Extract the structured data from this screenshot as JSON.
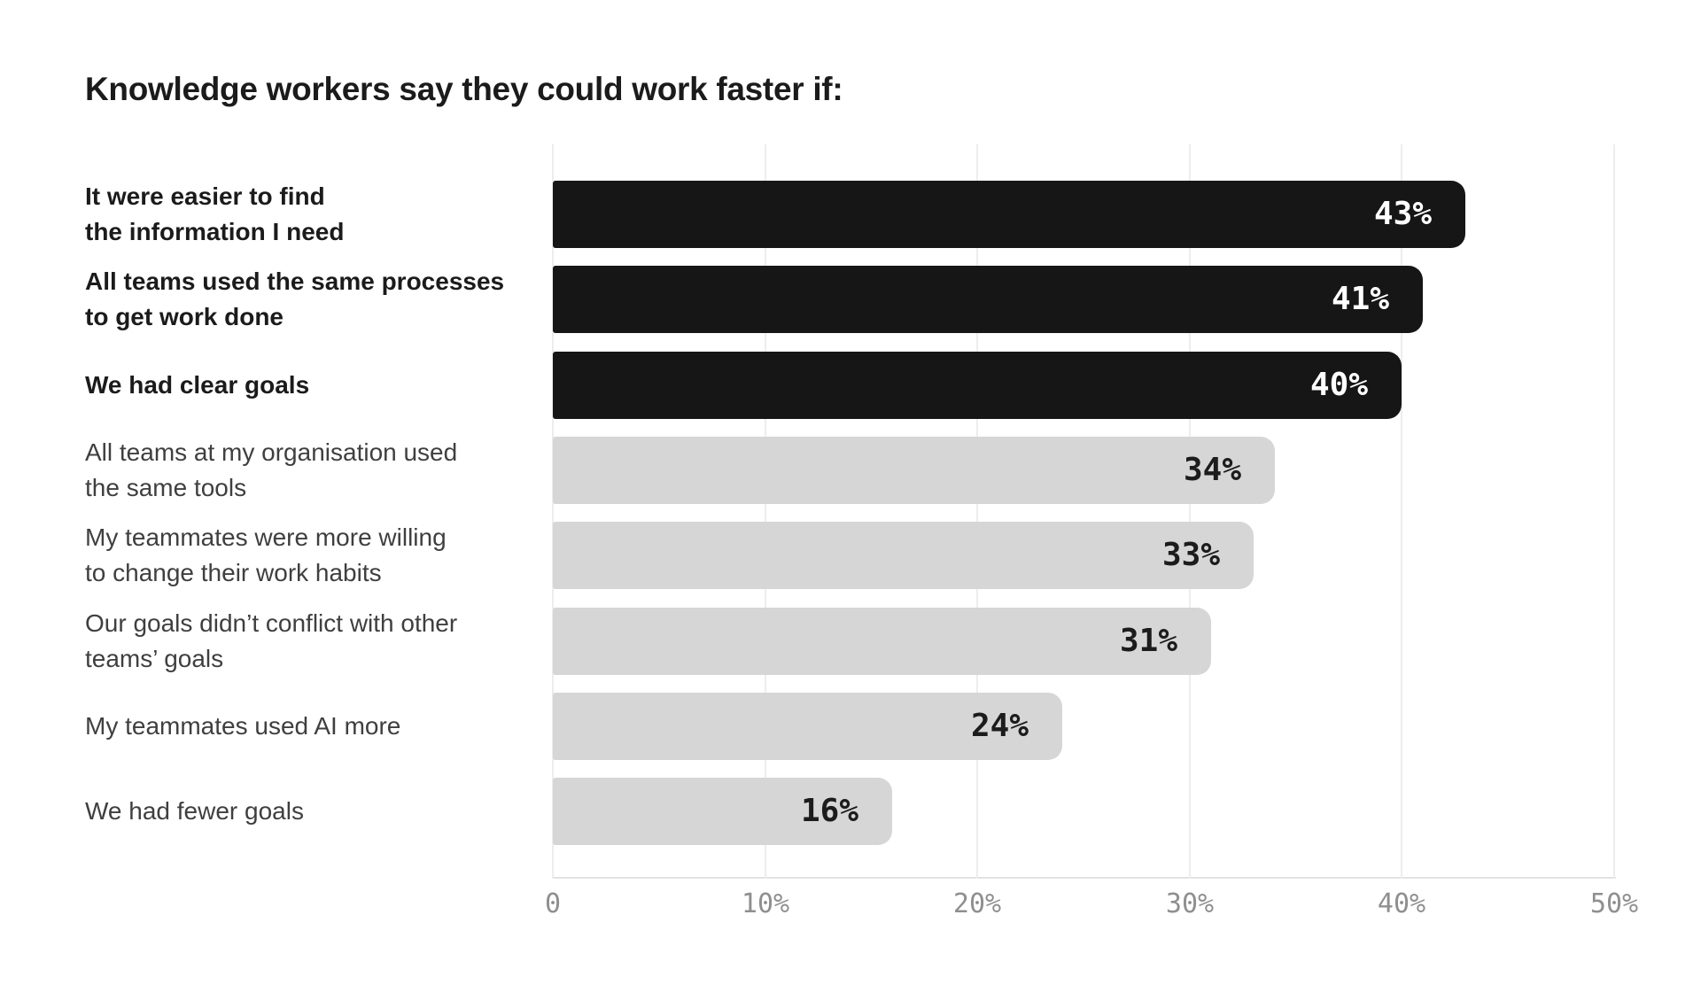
{
  "chart_data": {
    "type": "bar",
    "orientation": "horizontal",
    "title": "Knowledge workers say they could work faster if:",
    "xlabel": "",
    "ylabel": "",
    "xlim": [
      0,
      50
    ],
    "grid": "vertical",
    "legend": "none",
    "x_ticks": [
      {
        "label": "0",
        "value": 0
      },
      {
        "label": "10%",
        "value": 10
      },
      {
        "label": "20%",
        "value": 20
      },
      {
        "label": "30%",
        "value": 30
      },
      {
        "label": "40%",
        "value": 40
      },
      {
        "label": "50%",
        "value": 50
      }
    ],
    "bars": [
      {
        "label": "It were easier to find\nthe information I need",
        "value": 43,
        "value_label": "43%",
        "emphasized": true
      },
      {
        "label": "All teams used the same processes\nto get work done",
        "value": 41,
        "value_label": "41%",
        "emphasized": true
      },
      {
        "label": "We had clear goals",
        "value": 40,
        "value_label": "40%",
        "emphasized": true
      },
      {
        "label": "All teams at my organisation used\nthe same tools",
        "value": 34,
        "value_label": "34%",
        "emphasized": false
      },
      {
        "label": "My teammates were more willing\nto change their work habits",
        "value": 33,
        "value_label": "33%",
        "emphasized": false
      },
      {
        "label": "Our goals didn’t conflict with other\nteams’ goals",
        "value": 31,
        "value_label": "31%",
        "emphasized": false
      },
      {
        "label": "My teammates used AI more",
        "value": 24,
        "value_label": "24%",
        "emphasized": false
      },
      {
        "label": "We had fewer goals",
        "value": 16,
        "value_label": "16%",
        "emphasized": false
      }
    ],
    "colors": {
      "emphasized_bar": "#161616",
      "default_bar": "#d6d6d6",
      "value_on_emphasized": "#ffffff",
      "value_on_default": "#1c1c1c",
      "gridline": "#ededed",
      "axis_line": "#e2e2e2",
      "tick_label": "#8f8f8f",
      "title_text": "#1b1b1b",
      "bold_label_text": "#1b1b1b",
      "regular_label_text": "#3f3f3f",
      "background": "#ffffff"
    }
  }
}
